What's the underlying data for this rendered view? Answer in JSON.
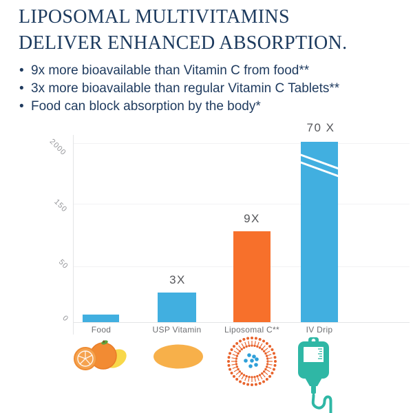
{
  "header": {
    "title_line1": "LIPOSOMAL MULTIVITAMINS",
    "title_line2": "DELIVER ENHANCED ABSORPTION.",
    "title_color": "#1C3A5E"
  },
  "bullets": [
    "9x more bioavailable than Vitamin C from food**",
    "3x more bioavailable than regular Vitamin C Tablets**",
    "Food can block absorption by the body*"
  ],
  "chart_data": {
    "type": "bar",
    "title": "",
    "categories": [
      "Food",
      "USP Vitamin",
      "Liposomal C**",
      "IV Drip"
    ],
    "bar_value_labels": [
      "",
      "3X",
      "9X",
      "70 X"
    ],
    "estimated_values": [
      7,
      27,
      105,
      2050
    ],
    "y_ticks": [
      0,
      50,
      150,
      2000
    ],
    "ylim": [
      0,
      2200
    ],
    "axis_note": "non-linear broken y-scale; white break marks drawn across IV Drip bar",
    "bar_colors": [
      "#41AFE0",
      "#41AFE0",
      "#F7702B",
      "#41AFE0"
    ],
    "grid": true,
    "legend": false
  },
  "icons": {
    "food": "orange-fruits-icon",
    "usp": "tablet-pill-icon",
    "liposomal": "liposome-icon",
    "iv": "iv-drip-bag-icon"
  },
  "colors": {
    "bar_blue": "#41AFE0",
    "bar_orange": "#F7702B",
    "navy_text": "#1C3A5E",
    "tick_grey": "#95969A",
    "label_grey": "#6D6E71",
    "teal_icon": "#2FB7A5",
    "pill_yellow": "#F7B04A",
    "liposome_orange": "#E8632C",
    "liposome_blue": "#2E9FD9"
  }
}
